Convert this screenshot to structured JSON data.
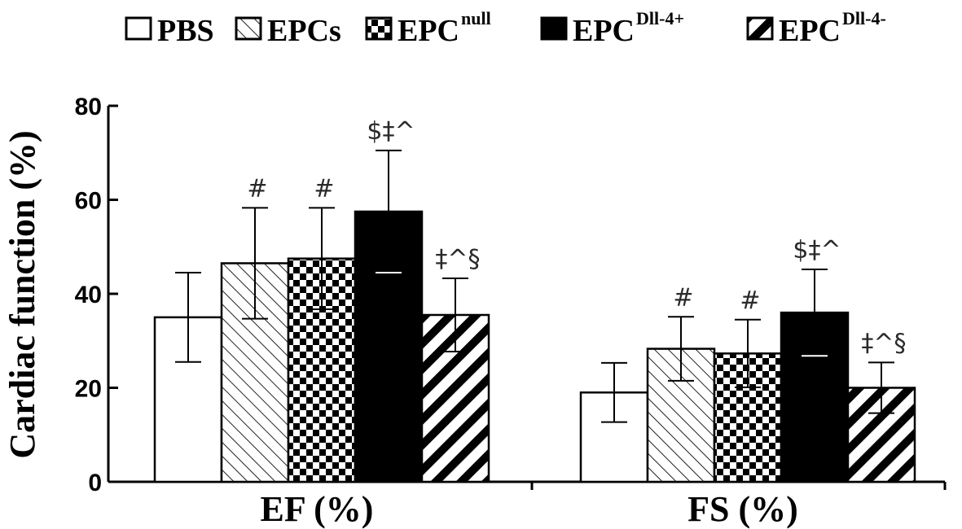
{
  "chart_data": {
    "type": "bar",
    "ylabel": "Cardiac function (%)",
    "ylim": [
      0,
      80
    ],
    "yticks": [
      0,
      20,
      40,
      60,
      80
    ],
    "categories": [
      "EF (%)",
      "FS (%)"
    ],
    "grid": false,
    "legend_position": "top",
    "series": [
      {
        "name": "PBS",
        "legend_sup": "",
        "pattern": "white",
        "values": [
          35.0,
          19.0
        ],
        "errors": [
          9.5,
          6.3
        ],
        "annotations": [
          "",
          ""
        ]
      },
      {
        "name": "EPCs",
        "legend_sup": "",
        "pattern": "diagonal-hatch",
        "values": [
          46.5,
          28.3
        ],
        "errors": [
          11.8,
          6.8
        ],
        "annotations": [
          "#",
          "#"
        ]
      },
      {
        "name": "EPC",
        "legend_sup": "null",
        "pattern": "checkerboard",
        "values": [
          47.5,
          27.3
        ],
        "errors": [
          10.8,
          7.2
        ],
        "annotations": [
          "#",
          "#"
        ]
      },
      {
        "name": "EPC",
        "legend_sup": "Dll-4+",
        "pattern": "solid-black",
        "values": [
          57.5,
          36.0
        ],
        "errors": [
          13.0,
          9.2
        ],
        "annotations": [
          "$‡^",
          "$‡^"
        ]
      },
      {
        "name": "EPC",
        "legend_sup": "Dll-4-",
        "pattern": "thick-stripes",
        "values": [
          35.5,
          20.0
        ],
        "errors": [
          7.8,
          5.4
        ],
        "annotations": [
          "‡^§",
          "‡^§"
        ]
      }
    ]
  }
}
